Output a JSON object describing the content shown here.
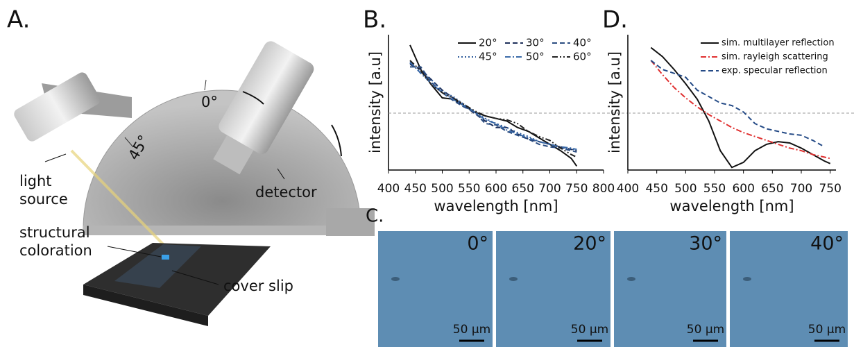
{
  "panel_a": {
    "letter": "A.",
    "angle_0": "0°",
    "angle_45": "45°",
    "light_source": [
      "light",
      "source"
    ],
    "detector": "detector",
    "structural_coloration": [
      "structural",
      "coloration"
    ],
    "cover_slip": "cover slip"
  },
  "panel_c": {
    "letter": "C.",
    "images": [
      {
        "angle": "0°",
        "scale": "50 µm"
      },
      {
        "angle": "20°",
        "scale": "50 µm"
      },
      {
        "angle": "30°",
        "scale": "50 µm"
      },
      {
        "angle": "40°",
        "scale": "50 µm"
      }
    ]
  },
  "chart_data": [
    {
      "type": "line",
      "title": "B.",
      "x_label": "wavelength [nm]",
      "y_label": "intensity [a.u]",
      "xlim": [
        400,
        800
      ],
      "xticks": [
        400,
        450,
        500,
        550,
        600,
        650,
        700,
        750,
        800
      ],
      "ylim": [
        0,
        1.05
      ],
      "x": [
        440,
        460,
        480,
        500,
        520,
        540,
        560,
        580,
        600,
        620,
        640,
        660,
        680,
        700,
        720,
        740,
        750
      ],
      "legend_columns": 3,
      "series": [
        {
          "name": "20°",
          "color": "#111111",
          "dash": "solid",
          "values": [
            0.97,
            0.78,
            0.66,
            0.56,
            0.55,
            0.5,
            0.45,
            0.42,
            0.4,
            0.38,
            0.33,
            0.3,
            0.25,
            0.2,
            0.15,
            0.09,
            0.03
          ]
        },
        {
          "name": "30°",
          "color": "#1d2f5a",
          "dash": "dashed",
          "values": [
            0.82,
            0.78,
            0.7,
            0.62,
            0.56,
            0.5,
            0.44,
            0.38,
            0.33,
            0.33,
            0.28,
            0.24,
            0.22,
            0.2,
            0.18,
            0.16,
            0.15
          ]
        },
        {
          "name": "40°",
          "color": "#2a4c80",
          "dash": "dashed",
          "values": [
            0.8,
            0.8,
            0.68,
            0.6,
            0.54,
            0.49,
            0.45,
            0.36,
            0.35,
            0.3,
            0.27,
            0.24,
            0.2,
            0.18,
            0.17,
            0.15,
            0.14
          ]
        },
        {
          "name": "45°",
          "color": "#2d5a9a",
          "dash": "dotted",
          "values": [
            0.83,
            0.76,
            0.7,
            0.61,
            0.57,
            0.51,
            0.45,
            0.4,
            0.36,
            0.33,
            0.29,
            0.26,
            0.22,
            0.2,
            0.17,
            0.16,
            0.16
          ]
        },
        {
          "name": "50°",
          "color": "#3a6aa8",
          "dash": "dashdot",
          "values": [
            0.84,
            0.75,
            0.67,
            0.6,
            0.55,
            0.5,
            0.45,
            0.39,
            0.36,
            0.31,
            0.28,
            0.25,
            0.22,
            0.2,
            0.18,
            0.17,
            0.16
          ]
        },
        {
          "name": "60°",
          "color": "#222222",
          "dash": "dashdotdot",
          "values": [
            0.85,
            0.77,
            0.66,
            0.6,
            0.56,
            0.51,
            0.46,
            0.42,
            0.4,
            0.39,
            0.36,
            0.3,
            0.26,
            0.23,
            0.17,
            0.12,
            0.1
          ]
        }
      ]
    },
    {
      "type": "line",
      "title": "D.",
      "x_label": "wavelength [nm]",
      "y_label": "intensity [a.u]",
      "xlim": [
        400,
        760
      ],
      "xticks": [
        400,
        450,
        500,
        550,
        600,
        650,
        700,
        750
      ],
      "ylim": [
        0,
        1.05
      ],
      "x": [
        440,
        460,
        480,
        500,
        520,
        540,
        560,
        580,
        600,
        620,
        640,
        660,
        680,
        700,
        720,
        740,
        750
      ],
      "legend_columns": 1,
      "series": [
        {
          "name": "sim. multilayer reflection",
          "color": "#111111",
          "dash": "solid",
          "values": [
            0.95,
            0.88,
            0.78,
            0.67,
            0.55,
            0.38,
            0.15,
            0.02,
            0.06,
            0.15,
            0.2,
            0.22,
            0.21,
            0.17,
            0.12,
            0.07,
            0.05
          ]
        },
        {
          "name": "sim. rayleigh scattering",
          "color": "#e03030",
          "dash": "dashdot",
          "values": [
            0.85,
            0.74,
            0.64,
            0.56,
            0.49,
            0.43,
            0.38,
            0.33,
            0.29,
            0.26,
            0.23,
            0.2,
            0.17,
            0.15,
            0.12,
            0.1,
            0.09
          ]
        },
        {
          "name": "exp. specular reflection",
          "color": "#244a86",
          "dash": "dashed",
          "values": [
            0.85,
            0.78,
            0.75,
            0.72,
            0.62,
            0.57,
            0.52,
            0.5,
            0.45,
            0.36,
            0.32,
            0.3,
            0.28,
            0.27,
            0.23,
            0.18,
            null
          ]
        }
      ]
    }
  ]
}
